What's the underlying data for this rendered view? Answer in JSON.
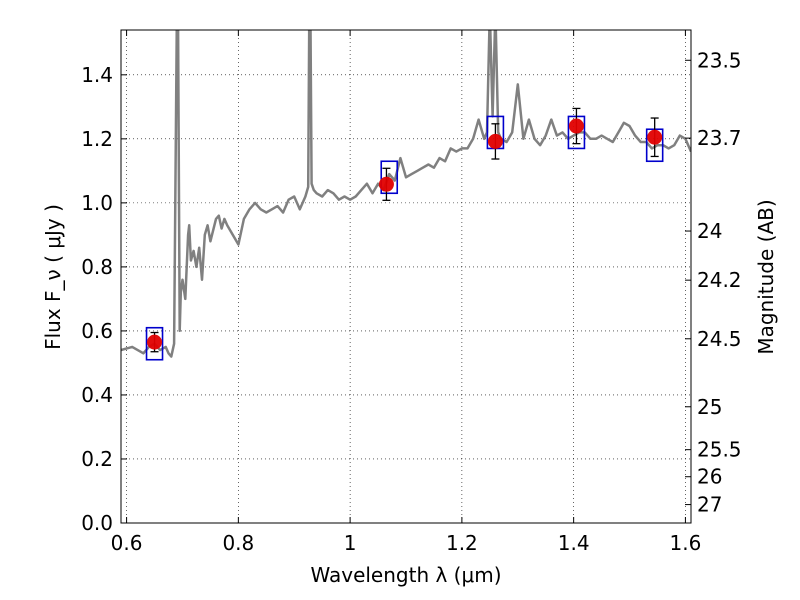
{
  "chart_data": {
    "type": "scatter",
    "xlabel": "Wavelength  λ (μm)",
    "ylabel": "Flux  F_ν  ( μJy )",
    "ylabel_right": "Magnitude (AB)",
    "xlim": [
      0.59,
      1.61
    ],
    "ylim": [
      0.0,
      1.54
    ],
    "grid": true,
    "xticks": [
      0.6,
      0.8,
      1.0,
      1.2,
      1.4,
      1.6
    ],
    "xtick_labels": [
      "0.6",
      "0.8",
      "1",
      "1.2",
      "1.4",
      "1.6"
    ],
    "yticks": [
      0.0,
      0.2,
      0.4,
      0.6,
      0.8,
      1.0,
      1.2,
      1.4
    ],
    "ytick_labels": [
      "0.0",
      "0.2",
      "0.4",
      "0.6",
      "0.8",
      "1.0",
      "1.2",
      "1.4"
    ],
    "right_ticks": [
      {
        "label": "23.5",
        "value": 23.5
      },
      {
        "label": "23.7",
        "value": 23.7
      },
      {
        "label": "24",
        "value": 24.0
      },
      {
        "label": "24.2",
        "value": 24.2
      },
      {
        "label": "24.5",
        "value": 24.5
      },
      {
        "label": "25",
        "value": 25.0
      },
      {
        "label": "25.5",
        "value": 25.5
      },
      {
        "label": "26",
        "value": 26.0
      },
      {
        "label": "27",
        "value": 27.0
      }
    ],
    "series": [
      {
        "style": "line",
        "color": "#808080",
        "x": [
          0.59,
          0.61,
          0.63,
          0.64,
          0.65,
          0.66,
          0.67,
          0.675,
          0.68,
          0.685,
          0.69,
          0.692,
          0.695,
          0.697,
          0.7,
          0.705,
          0.71,
          0.712,
          0.715,
          0.72,
          0.725,
          0.73,
          0.735,
          0.74,
          0.745,
          0.75,
          0.76,
          0.765,
          0.77,
          0.775,
          0.78,
          0.79,
          0.8,
          0.81,
          0.82,
          0.83,
          0.84,
          0.85,
          0.86,
          0.87,
          0.88,
          0.89,
          0.9,
          0.91,
          0.92,
          0.925,
          0.927,
          0.929,
          0.931,
          0.935,
          0.94,
          0.95,
          0.96,
          0.97,
          0.98,
          0.99,
          1.0,
          1.01,
          1.02,
          1.03,
          1.04,
          1.05,
          1.06,
          1.07,
          1.08,
          1.09,
          1.1,
          1.11,
          1.12,
          1.13,
          1.14,
          1.15,
          1.16,
          1.17,
          1.18,
          1.19,
          1.2,
          1.21,
          1.22,
          1.23,
          1.24,
          1.245,
          1.25,
          1.255,
          1.26,
          1.265,
          1.27,
          1.28,
          1.29,
          1.3,
          1.31,
          1.32,
          1.33,
          1.34,
          1.35,
          1.36,
          1.37,
          1.38,
          1.39,
          1.4,
          1.41,
          1.42,
          1.43,
          1.44,
          1.45,
          1.46,
          1.47,
          1.48,
          1.49,
          1.5,
          1.51,
          1.52,
          1.53,
          1.54,
          1.55,
          1.56,
          1.57,
          1.58,
          1.59,
          1.6,
          1.61
        ],
        "y": [
          0.54,
          0.55,
          0.53,
          0.55,
          0.56,
          0.54,
          0.55,
          0.53,
          0.52,
          0.56,
          1.6,
          1.6,
          0.6,
          0.72,
          0.76,
          0.7,
          0.9,
          0.93,
          0.82,
          0.85,
          0.8,
          0.86,
          0.76,
          0.9,
          0.93,
          0.88,
          0.95,
          0.96,
          0.92,
          0.95,
          0.93,
          0.9,
          0.87,
          0.95,
          0.98,
          1.0,
          0.98,
          0.97,
          0.98,
          0.99,
          0.97,
          1.01,
          1.02,
          0.98,
          1.02,
          1.05,
          1.6,
          1.6,
          1.06,
          1.04,
          1.03,
          1.02,
          1.04,
          1.03,
          1.01,
          1.02,
          1.01,
          1.02,
          1.04,
          1.06,
          1.03,
          1.06,
          1.04,
          1.09,
          1.07,
          1.14,
          1.08,
          1.09,
          1.1,
          1.11,
          1.12,
          1.11,
          1.14,
          1.13,
          1.17,
          1.16,
          1.17,
          1.17,
          1.2,
          1.26,
          1.2,
          1.22,
          1.6,
          1.27,
          1.6,
          1.22,
          1.2,
          1.19,
          1.22,
          1.37,
          1.2,
          1.26,
          1.2,
          1.18,
          1.21,
          1.26,
          1.21,
          1.22,
          1.2,
          1.21,
          1.22,
          1.22,
          1.2,
          1.2,
          1.21,
          1.2,
          1.19,
          1.22,
          1.25,
          1.24,
          1.21,
          1.19,
          1.19,
          1.17,
          1.18,
          1.18,
          1.17,
          1.18,
          1.21,
          1.2,
          1.16
        ]
      },
      {
        "style": "box",
        "color": "#0000cc",
        "x": [
          0.65,
          1.07,
          1.26,
          1.405,
          1.545
        ],
        "y": [
          0.56,
          1.08,
          1.22,
          1.22,
          1.18
        ],
        "box_height": [
          0.05,
          0.05,
          0.05,
          0.05,
          0.05
        ]
      },
      {
        "style": "point_errorbar",
        "color": "#e00000",
        "x": [
          0.65,
          1.065,
          1.26,
          1.405,
          1.545
        ],
        "y": [
          0.565,
          1.058,
          1.192,
          1.24,
          1.205
        ],
        "yerr": [
          0.03,
          0.05,
          0.055,
          0.055,
          0.06
        ]
      }
    ]
  }
}
